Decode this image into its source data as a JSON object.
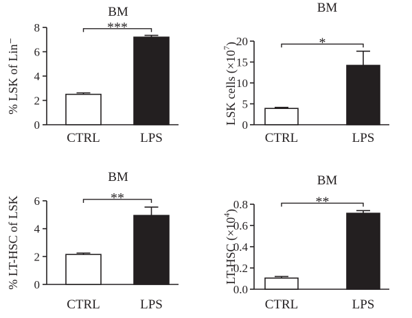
{
  "chart_data": [
    {
      "type": "bar",
      "title": "BM",
      "ylabel": "% LSK of Lin⁻",
      "ylabel_sup": "",
      "ylabel_tail": "",
      "categories": [
        "CTRL",
        "LPS"
      ],
      "values": [
        2.5,
        7.2
      ],
      "errors": [
        0.12,
        0.15
      ],
      "fills": [
        "#ffffff",
        "#231f20"
      ],
      "ylim": [
        0,
        8
      ],
      "yticks": [
        "0",
        "2",
        "4",
        "6",
        "8"
      ],
      "yvalues": [
        0,
        2,
        4,
        6,
        8
      ],
      "significance": "***",
      "sig_level": 7.9
    },
    {
      "type": "bar",
      "title": "BM",
      "ylabel": "LSK cells (×10",
      "ylabel_sup": "7",
      "ylabel_tail": ")",
      "categories": [
        "CTRL",
        "LPS"
      ],
      "values": [
        3.9,
        14.2
      ],
      "errors": [
        0.25,
        3.4
      ],
      "fills": [
        "#ffffff",
        "#231f20"
      ],
      "ylim": [
        0,
        20
      ],
      "yticks": [
        "0",
        "5",
        "10",
        "15",
        "20"
      ],
      "yvalues": [
        0,
        5,
        10,
        15,
        20
      ],
      "significance": "*",
      "sig_level": 19.3
    },
    {
      "type": "bar",
      "title": "BM",
      "ylabel": "% LT-HSC of LSK",
      "ylabel_sup": "",
      "ylabel_tail": "",
      "categories": [
        "CTRL",
        "LPS"
      ],
      "values": [
        2.15,
        4.95
      ],
      "errors": [
        0.1,
        0.6
      ],
      "fills": [
        "#ffffff",
        "#231f20"
      ],
      "ylim": [
        0,
        6
      ],
      "yticks": [
        "0",
        "2",
        "4",
        "6"
      ],
      "yvalues": [
        0,
        2,
        4,
        6
      ],
      "significance": "**",
      "sig_level": 6.1
    },
    {
      "type": "bar",
      "title": "BM",
      "ylabel": "LT-HSC (×10",
      "ylabel_sup": "4",
      "ylabel_tail": ")",
      "categories": [
        "CTRL",
        "LPS"
      ],
      "values": [
        0.105,
        0.715
      ],
      "errors": [
        0.015,
        0.025
      ],
      "fills": [
        "#ffffff",
        "#231f20"
      ],
      "ylim": [
        0,
        0.8
      ],
      "yticks": [
        "0.0",
        "0.2",
        "0.4",
        "0.6",
        "0.8"
      ],
      "yvalues": [
        0,
        0.2,
        0.4,
        0.6,
        0.8
      ],
      "significance": "**",
      "sig_level": 0.81
    }
  ]
}
